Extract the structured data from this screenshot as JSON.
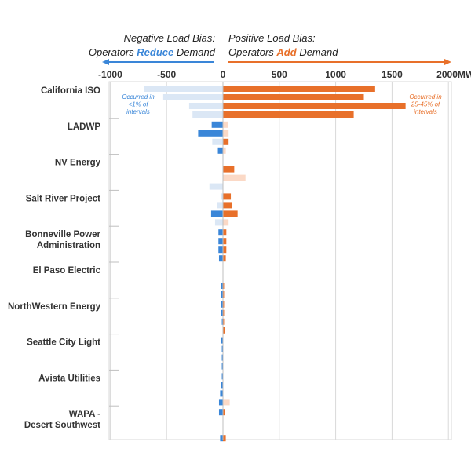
{
  "header": {
    "negative_line1": "Negative Load Bias:",
    "negative_line2_pre": "Operators ",
    "negative_line2_highlight": "Reduce",
    "negative_line2_post": " Demand",
    "positive_line1": "Positive Load Bias:",
    "positive_line2_pre": "Operators ",
    "positive_line2_highlight": "Add",
    "positive_line2_post": " Demand"
  },
  "annotations": {
    "negative": [
      "Occurred in",
      "<1% of",
      "intervals"
    ],
    "positive": [
      "Occurred in",
      "25-45% of",
      "intervals"
    ]
  },
  "colors": {
    "positive_strong": "#e8702a",
    "positive_light": "#fbd9c6",
    "negative_strong": "#3a86d8",
    "negative_light": "#dbe7f5",
    "grid": "#d9d9d9",
    "arrow_negative": "#3a86d8",
    "arrow_positive": "#e8702a"
  },
  "chart_data": {
    "type": "bar",
    "orientation": "horizontal",
    "x_unit": "MW",
    "xlim": [
      -1000,
      2000
    ],
    "ticks": [
      {
        "value": -1000,
        "label": "-1000"
      },
      {
        "value": -500,
        "label": "-500"
      },
      {
        "value": 0,
        "label": "0"
      },
      {
        "value": 500,
        "label": "500"
      },
      {
        "value": 1000,
        "label": "1000"
      },
      {
        "value": 1500,
        "label": "1500"
      },
      {
        "value": 2000,
        "label": "2000MW"
      }
    ],
    "grid": true,
    "groups": [
      {
        "label": [
          "California ISO"
        ],
        "bars": [
          {
            "neg": [
              -700,
              "light"
            ],
            "pos": [
              1350,
              "strong"
            ]
          },
          {
            "neg": [
              -530,
              "light"
            ],
            "pos": [
              1250,
              "strong"
            ]
          },
          {
            "neg": [
              -300,
              "light"
            ],
            "pos": [
              1620,
              "strong"
            ]
          },
          {
            "neg": [
              -270,
              "light"
            ],
            "pos": [
              1160,
              "strong"
            ]
          }
        ]
      },
      {
        "label": [
          "LADWP"
        ],
        "bars": [
          {
            "neg": [
              -100,
              "strong"
            ],
            "pos": [
              45,
              "light"
            ]
          },
          {
            "neg": [
              -220,
              "strong"
            ],
            "pos": [
              50,
              "light"
            ]
          },
          {
            "neg": [
              -95,
              "light"
            ],
            "pos": [
              50,
              "strong"
            ]
          },
          {
            "neg": [
              -45,
              "strong"
            ],
            "pos": [
              25,
              "light"
            ]
          }
        ]
      },
      {
        "label": [
          "NV Energy"
        ],
        "bars": [
          {
            "neg": null,
            "pos": null
          },
          {
            "neg": null,
            "pos": [
              100,
              "strong"
            ]
          },
          {
            "neg": null,
            "pos": [
              200,
              "light"
            ]
          },
          {
            "neg": [
              -120,
              "light"
            ],
            "pos": null
          }
        ]
      },
      {
        "label": [
          "Salt River Project"
        ],
        "bars": [
          {
            "neg": [
              -15,
              "light"
            ],
            "pos": [
              70,
              "strong"
            ]
          },
          {
            "neg": [
              -55,
              "light"
            ],
            "pos": [
              80,
              "strong"
            ]
          },
          {
            "neg": [
              -105,
              "strong"
            ],
            "pos": [
              130,
              "strong"
            ]
          },
          {
            "neg": [
              -70,
              "light"
            ],
            "pos": [
              50,
              "light"
            ]
          }
        ]
      },
      {
        "label": [
          "Bonneville Power",
          "Administration"
        ],
        "bars": [
          {
            "neg": [
              -40,
              "strong"
            ],
            "pos": [
              30,
              "strong"
            ]
          },
          {
            "neg": [
              -40,
              "strong"
            ],
            "pos": [
              30,
              "strong"
            ]
          },
          {
            "neg": [
              -40,
              "strong"
            ],
            "pos": [
              30,
              "strong"
            ]
          },
          {
            "neg": [
              -35,
              "strong"
            ],
            "pos": [
              25,
              "strong"
            ]
          }
        ]
      },
      {
        "label": [
          "El Paso Electric"
        ],
        "bars": [
          {
            "neg": null,
            "pos": null
          },
          {
            "neg": null,
            "pos": null
          },
          {
            "neg": [
              -15,
              "strong"
            ],
            "pos": [
              10,
              "strong"
            ]
          },
          {
            "neg": [
              -15,
              "strong"
            ],
            "pos": [
              10,
              "strong"
            ]
          }
        ]
      },
      {
        "label": [
          "NorthWestern Energy"
        ],
        "bars": [
          {
            "neg": [
              -15,
              "strong"
            ],
            "pos": [
              10,
              "strong"
            ]
          },
          {
            "neg": [
              -15,
              "strong"
            ],
            "pos": [
              10,
              "strong"
            ]
          },
          {
            "neg": [
              -10,
              "strong"
            ],
            "pos": [
              10,
              "strong"
            ]
          },
          {
            "neg": null,
            "pos": [
              20,
              "strong"
            ]
          }
        ]
      },
      {
        "label": [
          "Seattle City Light"
        ],
        "bars": [
          {
            "neg": [
              -15,
              "strong"
            ],
            "pos": null
          },
          {
            "neg": [
              -10,
              "strong"
            ],
            "pos": null
          },
          {
            "neg": [
              -10,
              "strong"
            ],
            "pos": null
          },
          {
            "neg": [
              -10,
              "strong"
            ],
            "pos": null
          }
        ]
      },
      {
        "label": [
          "Avista Utilities"
        ],
        "bars": [
          {
            "neg": [
              -10,
              "strong"
            ],
            "pos": null
          },
          {
            "neg": [
              -15,
              "strong"
            ],
            "pos": null
          },
          {
            "neg": [
              -25,
              "strong"
            ],
            "pos": null
          },
          {
            "neg": [
              -35,
              "strong"
            ],
            "pos": [
              60,
              "light"
            ]
          }
        ]
      },
      {
        "label": [
          "WAPA -",
          "Desert Southwest"
        ],
        "bars": [
          {
            "neg": [
              -35,
              "strong"
            ],
            "pos": [
              15,
              "strong"
            ]
          },
          {
            "neg": null,
            "pos": null
          },
          {
            "neg": null,
            "pos": null
          },
          {
            "neg": [
              -25,
              "strong"
            ],
            "pos": [
              25,
              "strong"
            ]
          }
        ]
      }
    ]
  }
}
